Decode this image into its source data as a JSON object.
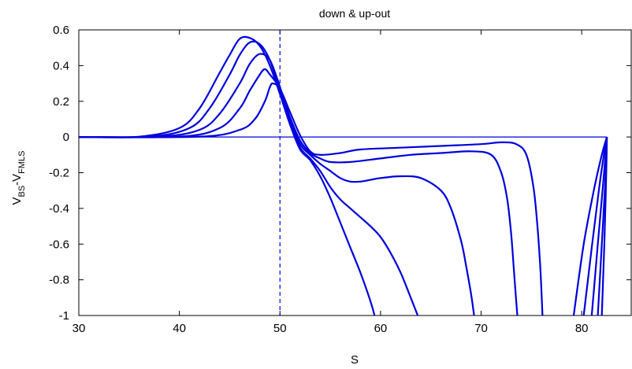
{
  "chart_data": {
    "type": "line",
    "title": "down & up-out",
    "xlabel": "S",
    "ylabel_main": "V",
    "ylabel_sub1": "BS",
    "ylabel_mid": "-V",
    "ylabel_sub2": "FMLS",
    "xlim": [
      30,
      85
    ],
    "ylim": [
      -1,
      0.6
    ],
    "xticks": [
      30,
      40,
      50,
      60,
      70,
      80
    ],
    "yticks": [
      -1,
      -0.8,
      -0.6,
      -0.4,
      -0.2,
      0,
      0.2,
      0.4,
      0.6
    ],
    "xtick_labels": [
      "30",
      "40",
      "50",
      "60",
      "70",
      "80"
    ],
    "ytick_labels": [
      "-1",
      "-0.8",
      "-0.6",
      "-0.4",
      "-0.2",
      "0",
      "0.2",
      "0.4",
      "0.6"
    ],
    "reference_lines": [
      {
        "orientation": "horizontal",
        "value": 0,
        "style": "solid"
      },
      {
        "orientation": "vertical",
        "value": 50,
        "style": "dashed"
      }
    ],
    "grid": false,
    "line_color": "#0000dd",
    "series": [
      {
        "x": [
          30,
          36,
          40,
          42,
          44,
          45,
          46,
          47,
          48,
          49,
          50,
          51,
          52,
          53,
          54,
          55,
          56,
          57,
          58,
          59,
          59.4
        ],
        "y": [
          0,
          0.002,
          0.05,
          0.16,
          0.36,
          0.46,
          0.55,
          0.555,
          0.51,
          0.4,
          0.24,
          0.07,
          -0.07,
          -0.13,
          -0.22,
          -0.34,
          -0.48,
          -0.62,
          -0.76,
          -0.92,
          -1
        ]
      },
      {
        "x": [
          30,
          37,
          41,
          43,
          45,
          46,
          47,
          48,
          49,
          50,
          51,
          52,
          53,
          54,
          55,
          56,
          57,
          58,
          59,
          60,
          61,
          62,
          63,
          63.7
        ],
        "y": [
          0,
          0.002,
          0.05,
          0.16,
          0.35,
          0.46,
          0.53,
          0.52,
          0.43,
          0.26,
          0.08,
          -0.06,
          -0.12,
          -0.19,
          -0.28,
          -0.35,
          -0.4,
          -0.45,
          -0.5,
          -0.56,
          -0.65,
          -0.76,
          -0.9,
          -1
        ]
      },
      {
        "x": [
          30,
          38,
          42,
          44,
          46,
          47,
          48,
          49,
          50,
          51,
          52,
          53,
          54,
          55,
          56,
          57,
          58,
          59,
          60,
          62,
          64,
          66,
          67,
          68,
          68.5,
          69,
          69.3
        ],
        "y": [
          0,
          0.002,
          0.04,
          0.13,
          0.3,
          0.41,
          0.465,
          0.43,
          0.28,
          0.1,
          -0.04,
          -0.1,
          -0.15,
          -0.19,
          -0.23,
          -0.25,
          -0.25,
          -0.24,
          -0.23,
          -0.22,
          -0.23,
          -0.3,
          -0.4,
          -0.58,
          -0.72,
          -0.88,
          -1
        ]
      },
      {
        "x": [
          30,
          40,
          44,
          46,
          47,
          48,
          48.5,
          49,
          50,
          51,
          52,
          53,
          54,
          55,
          57,
          60,
          63,
          66,
          69,
          71,
          72,
          72.6,
          73,
          73.3,
          73.6
        ],
        "y": [
          0,
          0.002,
          0.05,
          0.16,
          0.26,
          0.35,
          0.38,
          0.35,
          0.27,
          0.11,
          -0.02,
          -0.09,
          -0.12,
          -0.14,
          -0.14,
          -0.12,
          -0.1,
          -0.09,
          -0.08,
          -0.1,
          -0.2,
          -0.35,
          -0.55,
          -0.78,
          -1
        ]
      },
      {
        "x": [
          30,
          42,
          46,
          47.5,
          48.5,
          49,
          49.3,
          50,
          51,
          52,
          53,
          54,
          56,
          58,
          62,
          66,
          70,
          72,
          73.5,
          74.5,
          75.2,
          75.6,
          75.9,
          76.1
        ],
        "y": [
          0,
          0.002,
          0.04,
          0.1,
          0.2,
          0.28,
          0.3,
          0.27,
          0.14,
          0.01,
          -0.08,
          -0.1,
          -0.09,
          -0.07,
          -0.06,
          -0.05,
          -0.04,
          -0.03,
          -0.04,
          -0.1,
          -0.28,
          -0.5,
          -0.75,
          -1
        ]
      },
      {
        "x": [
          79.2,
          80.2,
          81.2,
          82.0,
          82.5
        ],
        "y": [
          -1,
          -0.6,
          -0.3,
          -0.1,
          0
        ]
      },
      {
        "x": [
          80.2,
          81.0,
          81.7,
          82.2,
          82.5
        ],
        "y": [
          -1,
          -0.62,
          -0.3,
          -0.1,
          0
        ]
      },
      {
        "x": [
          81.0,
          81.6,
          82.1,
          82.4,
          82.5
        ],
        "y": [
          -1,
          -0.6,
          -0.28,
          -0.08,
          0
        ]
      },
      {
        "x": [
          81.6,
          82.0,
          82.3,
          82.45,
          82.5
        ],
        "y": [
          -1,
          -0.6,
          -0.3,
          -0.1,
          0
        ]
      },
      {
        "x": [
          82.0,
          82.25,
          82.4,
          82.48,
          82.5
        ],
        "y": [
          -1,
          -0.6,
          -0.3,
          -0.1,
          0
        ]
      }
    ]
  }
}
